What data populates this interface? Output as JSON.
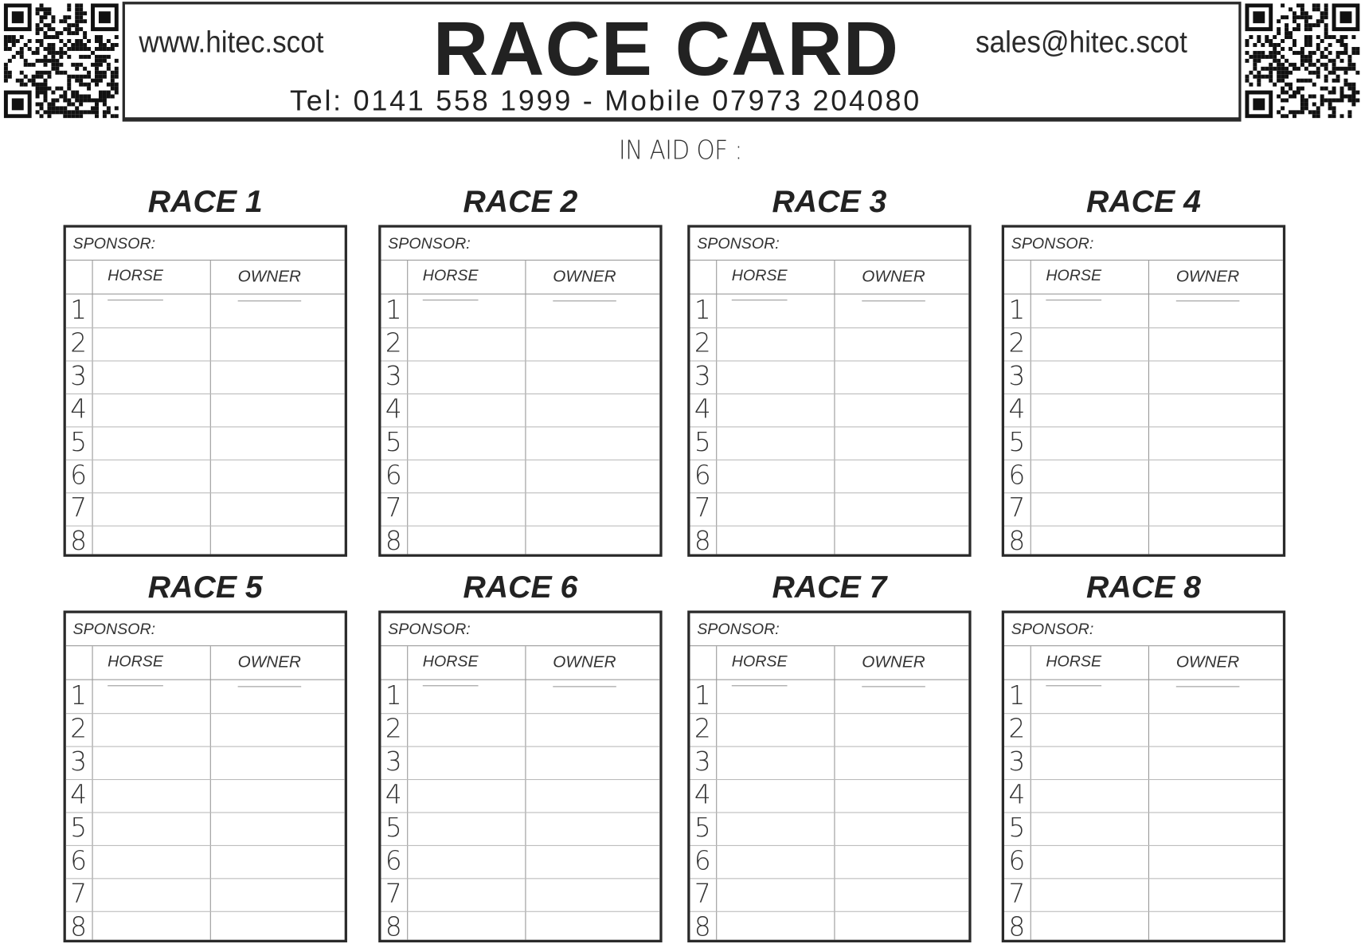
{
  "header": {
    "website": "www.hitec.scot",
    "title": "RACE CARD",
    "email": "sales@hitec.scot",
    "contact": "Tel: 0141 558 1999 - Mobile 07973 204080",
    "qr_left_icon": "qr-code",
    "qr_right_icon": "qr-code"
  },
  "in_aid_of": "IN AID OF :",
  "table_labels": {
    "sponsor": "SPONSOR:",
    "horse": "HORSE",
    "owner": "OWNER"
  },
  "races": [
    {
      "title": "RACE 1"
    },
    {
      "title": "RACE 2"
    },
    {
      "title": "RACE 3"
    },
    {
      "title": "RACE 4"
    },
    {
      "title": "RACE 5"
    },
    {
      "title": "RACE 6"
    },
    {
      "title": "RACE 7"
    },
    {
      "title": "RACE 8"
    }
  ],
  "row_numbers": [
    "1",
    "2",
    "3",
    "4",
    "5",
    "6",
    "7",
    "8"
  ]
}
